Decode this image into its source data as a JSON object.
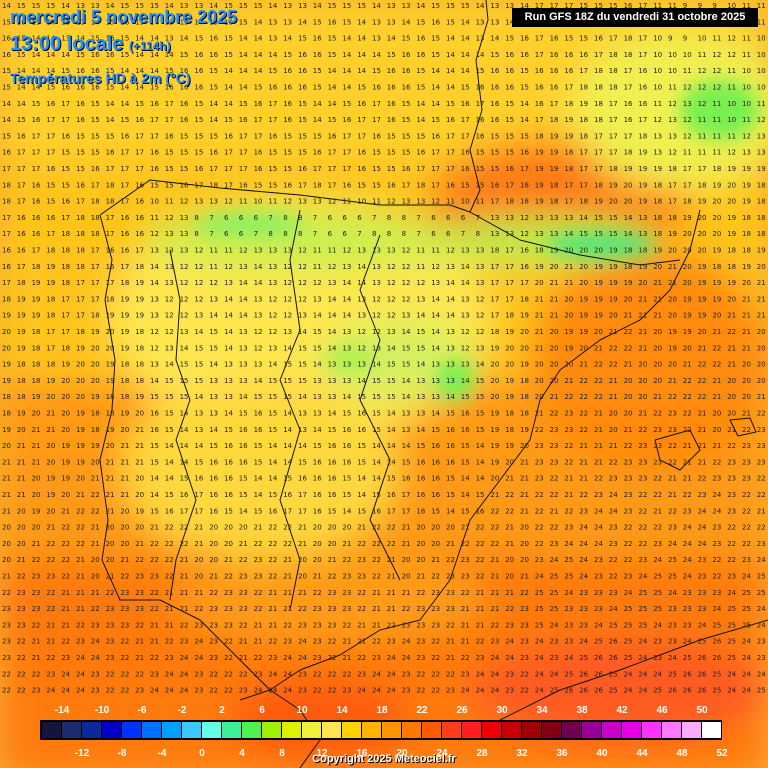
{
  "header": {
    "date_title": "mercredi 5 novembre 2025",
    "time_title": "13:00 locale",
    "lead_time": "(+114h)",
    "parameter": "Températures HD à 2m (°C)",
    "run_info": "Run GFS 18Z du vendredi 31 octobre 2025"
  },
  "footer": {
    "copyright": "Copyright 2025 Meteociel.fr"
  },
  "legend": {
    "labels_top": [
      "-14",
      "-10",
      "-6",
      "-2",
      "2",
      "6",
      "10",
      "14",
      "18",
      "22",
      "26",
      "30",
      "34",
      "38",
      "42",
      "46",
      "50"
    ],
    "labels_bottom": [
      "-12",
      "-8",
      "-4",
      "0",
      "4",
      "8",
      "12",
      "16",
      "20",
      "24",
      "28",
      "32",
      "36",
      "40",
      "44",
      "48",
      "52"
    ],
    "colors": [
      "#14143c",
      "#1e2a6e",
      "#0a2a9a",
      "#0000c8",
      "#0032ff",
      "#0070ff",
      "#00a0ff",
      "#3cc8ff",
      "#64ffe6",
      "#3cf096",
      "#50f050",
      "#a0f000",
      "#dcf000",
      "#f0f03c",
      "#ffe650",
      "#ffd200",
      "#ffb400",
      "#ff9600",
      "#ff7800",
      "#ff5a00",
      "#ff3c1e",
      "#ff1e1e",
      "#f00000",
      "#c80000",
      "#a00000",
      "#820014",
      "#6e0050",
      "#960096",
      "#c800c8",
      "#e600e6",
      "#ff32ff",
      "#ff78ff",
      "#ffaaff",
      "#ffffff"
    ]
  },
  "map": {
    "region": "Péninsule ibérique et Méditerranée occidentale",
    "temperature_range_c": [
      3,
      27
    ]
  }
}
